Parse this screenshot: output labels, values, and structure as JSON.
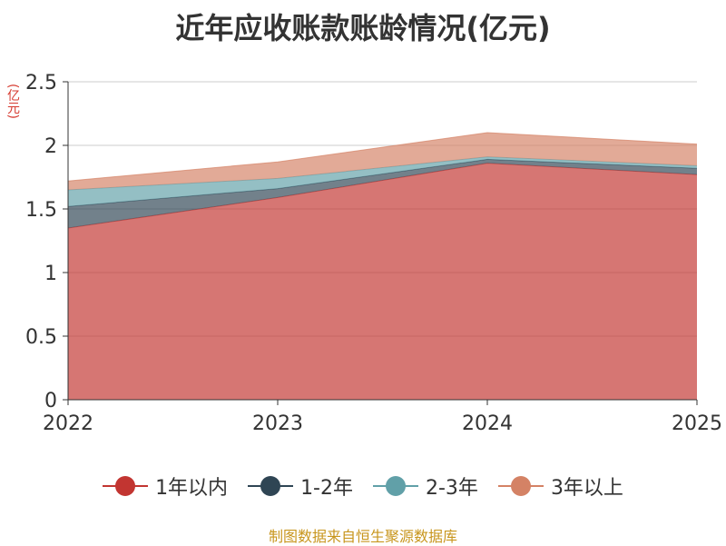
{
  "chart_data": {
    "type": "area",
    "stacked": true,
    "title": "近年应收账款账龄情况(亿元)",
    "ylabel": "(亿元)",
    "categories": [
      "2022",
      "2023",
      "2024",
      "2025"
    ],
    "ylim": [
      0,
      2.5
    ],
    "yticks": [
      "0",
      "0.5",
      "1",
      "1.5",
      "2",
      "2.5"
    ],
    "grid": true,
    "legend_position": "bottom",
    "series": [
      {
        "name": "1年以内",
        "color": "#c23531",
        "values": [
          1.35,
          1.59,
          1.86,
          1.77
        ]
      },
      {
        "name": "1-2年",
        "color": "#2f4554",
        "values": [
          0.17,
          0.07,
          0.03,
          0.05
        ]
      },
      {
        "name": "2-3年",
        "color": "#61a0a8",
        "values": [
          0.13,
          0.08,
          0.02,
          0.02
        ]
      },
      {
        "name": "3年以上",
        "color": "#d48265",
        "values": [
          0.07,
          0.13,
          0.19,
          0.17
        ]
      }
    ]
  },
  "footer": {
    "source": "制图数据来自恒生聚源数据库"
  }
}
